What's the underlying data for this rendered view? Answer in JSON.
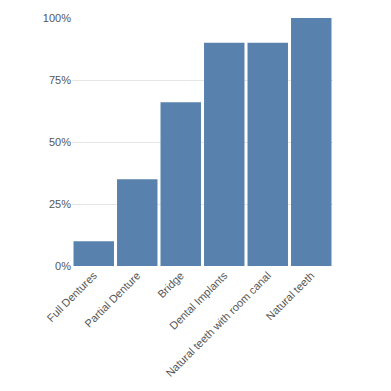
{
  "chart_data": {
    "type": "bar",
    "categories": [
      "Full Dentures",
      "Partial Denture",
      "Bridge",
      "Dental Implants",
      "Natural teeth with room canal",
      "Natural teeth"
    ],
    "values": [
      10,
      35,
      66,
      90,
      90,
      100
    ],
    "color": "#5882ad",
    "ylim": [
      0,
      100
    ],
    "yticks": [
      {
        "value": 0,
        "label": "0%"
      },
      {
        "value": 25,
        "label": "25%"
      },
      {
        "value": 50,
        "label": "50%"
      },
      {
        "value": 75,
        "label": "75%"
      },
      {
        "value": 100,
        "label": "100%"
      }
    ],
    "grid": true
  }
}
